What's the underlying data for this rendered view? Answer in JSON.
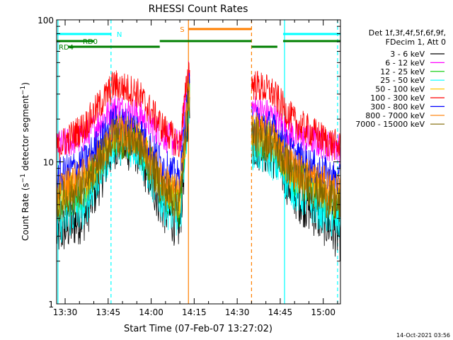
{
  "chart_data": {
    "type": "line",
    "title": "RHESSI Count Rates",
    "xlabel": "Start Time (07-Feb-07 13:27:02)",
    "ylabel": "Count Rate (s⁻¹ detector segment⁻¹)",
    "ylabel_parts": {
      "base": "Count Rate (s",
      "sup1": "−1",
      "mid": " detector segment",
      "sup2": "−1",
      "end": ")"
    },
    "yscale": "log",
    "ylim": [
      1,
      100
    ],
    "xlim": [
      "13:27:02",
      "15:06:00"
    ],
    "x_ticks": [
      "13:30",
      "13:45",
      "14:00",
      "14:15",
      "14:30",
      "14:45",
      "15:00"
    ],
    "y_ticks": [
      "1",
      "10",
      "100"
    ],
    "timestamp": "14-Oct-2021 03:56",
    "legend_header": [
      "Det 1f,3f,4f,5f,6f,9f,",
      "FDecim 1, Att 0"
    ],
    "legend_position": "right",
    "series": [
      {
        "name": "3 - 6 keV",
        "color": "#000000",
        "x": [
          "13:27",
          "13:37",
          "13:47",
          "13:55",
          "14:04",
          "14:10",
          "14:13",
          "14:36",
          "14:42",
          "14:50",
          "15:06"
        ],
        "values": [
          3.1,
          4.2,
          13.5,
          12.5,
          4.8,
          3.5,
          25,
          13.5,
          12,
          6,
          3.0
        ]
      },
      {
        "name": "6 - 12 keV",
        "color": "#ff00ff",
        "x": [
          "13:27",
          "13:37",
          "13:47",
          "13:55",
          "14:04",
          "14:10",
          "14:13",
          "14:36",
          "14:42",
          "14:50",
          "15:06"
        ],
        "values": [
          12.8,
          15,
          24,
          22,
          15.5,
          13,
          40,
          23.5,
          21,
          15,
          12.5
        ]
      },
      {
        "name": "12 - 25 keV",
        "color": "#00cc00",
        "x": [
          "13:27",
          "13:37",
          "13:47",
          "13:55",
          "14:04",
          "14:10",
          "14:13",
          "14:36",
          "14:42",
          "14:50",
          "15:06"
        ],
        "values": [
          5,
          6.5,
          15,
          14,
          6.5,
          4.8,
          28,
          15,
          13.5,
          8,
          4.8
        ]
      },
      {
        "name": "25 - 50 keV",
        "color": "#00ffff",
        "x": [
          "13:27",
          "13:37",
          "13:47",
          "13:55",
          "14:04",
          "14:10",
          "14:13",
          "14:36",
          "14:42",
          "14:50",
          "15:06"
        ],
        "values": [
          3.7,
          5,
          14,
          13,
          5.3,
          4.0,
          26,
          12.5,
          11,
          6.5,
          3.7
        ]
      },
      {
        "name": "50 - 100 keV",
        "color": "#ffc800",
        "x": [
          "13:27",
          "13:37",
          "13:47",
          "13:55",
          "14:04",
          "14:10",
          "14:13",
          "14:36",
          "14:42",
          "14:50",
          "15:06"
        ],
        "values": [
          5.5,
          7,
          16,
          15,
          7,
          5.3,
          30,
          15.5,
          14,
          8.5,
          5.3
        ]
      },
      {
        "name": "100 - 300 keV",
        "color": "#ff0000",
        "x": [
          "13:27",
          "13:37",
          "13:47",
          "13:55",
          "14:04",
          "14:10",
          "14:13",
          "14:36",
          "14:42",
          "14:50",
          "15:06"
        ],
        "values": [
          12.5,
          18,
          35,
          31,
          17.5,
          13,
          45,
          35,
          31,
          19,
          12.5
        ]
      },
      {
        "name": "300 - 800 keV",
        "color": "#0000ff",
        "x": [
          "13:27",
          "13:37",
          "13:47",
          "13:55",
          "14:04",
          "14:10",
          "14:13",
          "14:36",
          "14:42",
          "14:50",
          "15:06"
        ],
        "values": [
          7.8,
          10,
          19,
          17.5,
          9.5,
          7.5,
          32,
          19,
          17.5,
          11,
          7.2
        ]
      },
      {
        "name": "800 - 7000 keV",
        "color": "#ff7f00",
        "x": [
          "13:27",
          "13:37",
          "13:47",
          "13:55",
          "14:04",
          "14:10",
          "14:13",
          "14:36",
          "14:42",
          "14:50",
          "15:06"
        ],
        "values": [
          6.3,
          8,
          16,
          15,
          7.5,
          5.8,
          30,
          16.5,
          15,
          9,
          6.0
        ]
      },
      {
        "name": "7000 - 15000 keV",
        "color": "#7f6600",
        "x": [
          "13:27",
          "13:37",
          "13:47",
          "13:55",
          "14:04",
          "14:10",
          "14:13",
          "14:36",
          "14:42",
          "14:50",
          "15:06"
        ],
        "values": [
          5.0,
          6.5,
          15,
          14,
          6.5,
          5.0,
          29,
          15,
          13.5,
          8,
          4.8
        ]
      }
    ],
    "data_gaps": [
      [
        "14:13:30",
        "14:35:00"
      ]
    ],
    "status_bars": [
      {
        "label": "N",
        "color": "#00ffff",
        "segments": [
          [
            "13:27",
            "13:46"
          ],
          [
            "14:46",
            "15:06"
          ]
        ]
      },
      {
        "label": "S",
        "color": "#ff7f00",
        "segments": [
          [
            "14:13",
            "14:35"
          ]
        ]
      },
      {
        "label": "RD0",
        "color": "#007f00",
        "segments": [
          [
            "13:27",
            "13:40"
          ],
          [
            "14:03",
            "14:35"
          ],
          [
            "14:46",
            "15:06"
          ]
        ]
      },
      {
        "label": "RD4",
        "color": "#007f00",
        "segments": [
          [
            "13:31",
            "14:03"
          ],
          [
            "14:35",
            "14:44"
          ]
        ]
      }
    ],
    "vertical_lines": [
      {
        "time": "13:27:30",
        "color": "#00ffff",
        "style": "solid"
      },
      {
        "time": "13:46:00",
        "color": "#00ffff",
        "style": "dashed"
      },
      {
        "time": "14:13:00",
        "color": "#ff7f00",
        "style": "solid"
      },
      {
        "time": "14:35:00",
        "color": "#ff7f00",
        "style": "dashed"
      },
      {
        "time": "14:46:30",
        "color": "#00ffff",
        "style": "solid"
      },
      {
        "time": "15:05:00",
        "color": "#00ffff",
        "style": "dashed"
      }
    ]
  }
}
